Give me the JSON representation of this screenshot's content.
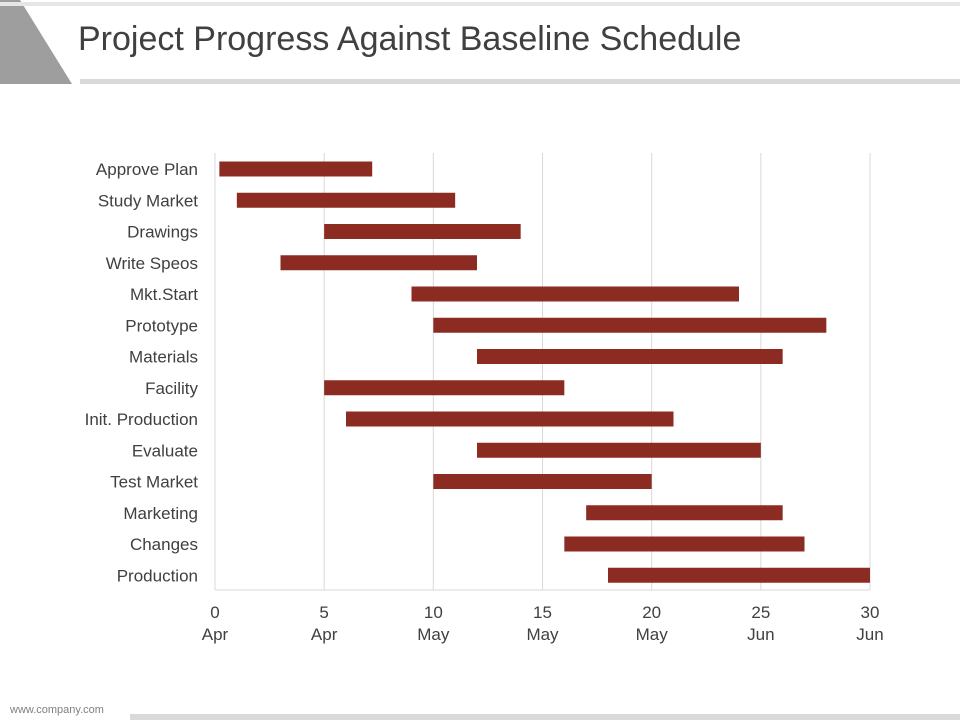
{
  "slide": {
    "title": "Project Progress Against Baseline Schedule",
    "footer": "www.company.com"
  },
  "colors": {
    "bar": "#8b2b22",
    "title": "#404040",
    "text": "#404040",
    "grid": "#d9d9d9",
    "corner": "#9e9e9e"
  },
  "chart_data": {
    "type": "bar",
    "orientation": "horizontal",
    "grid": true,
    "xlim": [
      0,
      30
    ],
    "xticks": [
      {
        "value": 0,
        "line1": "0",
        "line2": "Apr"
      },
      {
        "value": 5,
        "line1": "5",
        "line2": "Apr"
      },
      {
        "value": 10,
        "line1": "10",
        "line2": "May"
      },
      {
        "value": 15,
        "line1": "15",
        "line2": "May"
      },
      {
        "value": 20,
        "line1": "20",
        "line2": "May"
      },
      {
        "value": 25,
        "line1": "25",
        "line2": "Jun"
      },
      {
        "value": 30,
        "line1": "30",
        "line2": "Jun"
      }
    ],
    "tasks": [
      {
        "name": "Approve Plan",
        "start": 0.2,
        "end": 7.2
      },
      {
        "name": "Study Market",
        "start": 1,
        "end": 11
      },
      {
        "name": "Drawings",
        "start": 5,
        "end": 14
      },
      {
        "name": "Write Speos",
        "start": 3,
        "end": 12
      },
      {
        "name": "Mkt.Start",
        "start": 9,
        "end": 24
      },
      {
        "name": "Prototype",
        "start": 10,
        "end": 28
      },
      {
        "name": "Materials",
        "start": 12,
        "end": 26
      },
      {
        "name": "Facility",
        "start": 5,
        "end": 16
      },
      {
        "name": "Init. Production",
        "start": 6,
        "end": 21
      },
      {
        "name": "Evaluate",
        "start": 12,
        "end": 25
      },
      {
        "name": "Test Market",
        "start": 10,
        "end": 20
      },
      {
        "name": "Marketing",
        "start": 17,
        "end": 26
      },
      {
        "name": "Changes",
        "start": 16,
        "end": 27
      },
      {
        "name": "Production",
        "start": 18,
        "end": 30
      }
    ]
  }
}
